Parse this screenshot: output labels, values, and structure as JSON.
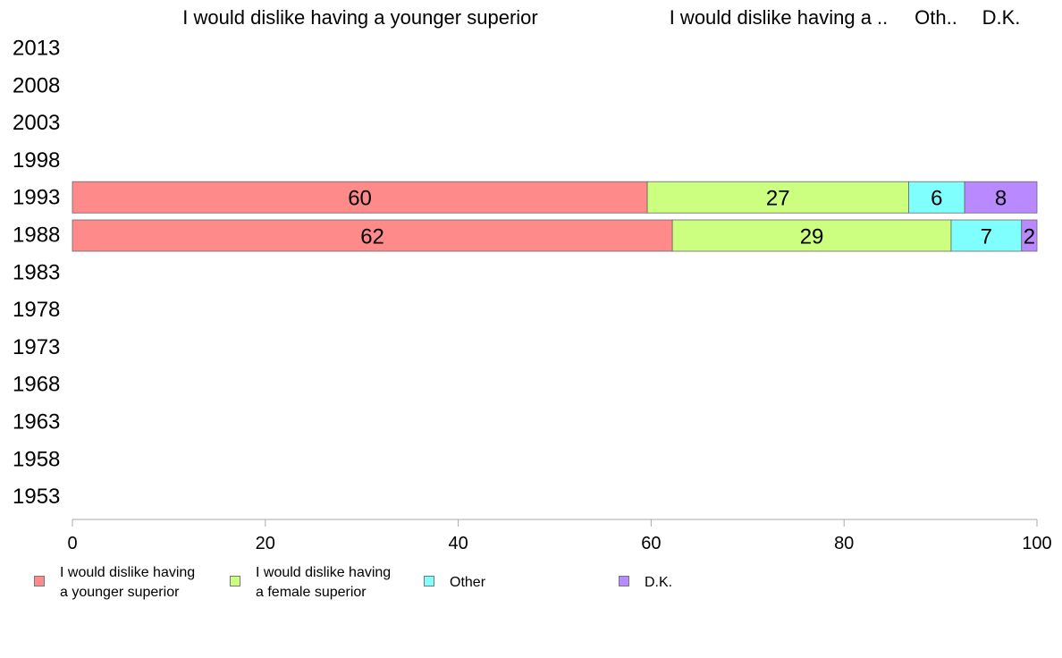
{
  "chart_data": {
    "type": "bar",
    "orientation": "horizontal",
    "stacked": true,
    "categories": [
      "2013",
      "2008",
      "2003",
      "1998",
      "1993",
      "1988",
      "1983",
      "1978",
      "1973",
      "1968",
      "1963",
      "1958",
      "1953"
    ],
    "column_headers": [
      "I would dislike having a younger superior",
      "I would dislike having a ..",
      "Oth..",
      "D.K."
    ],
    "series": [
      {
        "name": "I would dislike having\na younger superior",
        "color": "#ff8a8a",
        "values": [
          null,
          null,
          null,
          null,
          59.6,
          62.2,
          null,
          null,
          null,
          null,
          null,
          null,
          null
        ],
        "labels": [
          "",
          "",
          "",
          "",
          "60",
          "62",
          "",
          "",
          "",
          "",
          "",
          "",
          ""
        ]
      },
      {
        "name": "I would dislike having\na female superior",
        "color": "#ccff80",
        "values": [
          null,
          null,
          null,
          null,
          27.1,
          28.9,
          null,
          null,
          null,
          null,
          null,
          null,
          null
        ],
        "labels": [
          "",
          "",
          "",
          "",
          "27",
          "29",
          "",
          "",
          "",
          "",
          "",
          "",
          ""
        ]
      },
      {
        "name": "Other",
        "color": "#80ffff",
        "values": [
          null,
          null,
          null,
          null,
          5.8,
          7.3,
          null,
          null,
          null,
          null,
          null,
          null,
          null
        ],
        "labels": [
          "",
          "",
          "",
          "",
          "6",
          "7",
          "",
          "",
          "",
          "",
          "",
          "",
          ""
        ]
      },
      {
        "name": "D.K.",
        "color": "#b98aff",
        "values": [
          null,
          null,
          null,
          null,
          7.5,
          1.6,
          null,
          null,
          null,
          null,
          null,
          null,
          null
        ],
        "labels": [
          "",
          "",
          "",
          "",
          "8",
          "2",
          "",
          "",
          "",
          "",
          "",
          "",
          ""
        ]
      }
    ],
    "xlim": [
      0,
      100
    ],
    "xticks": [
      "0",
      "20",
      "40",
      "60",
      "80",
      "100"
    ],
    "grid": false,
    "legend_position": "bottom"
  }
}
